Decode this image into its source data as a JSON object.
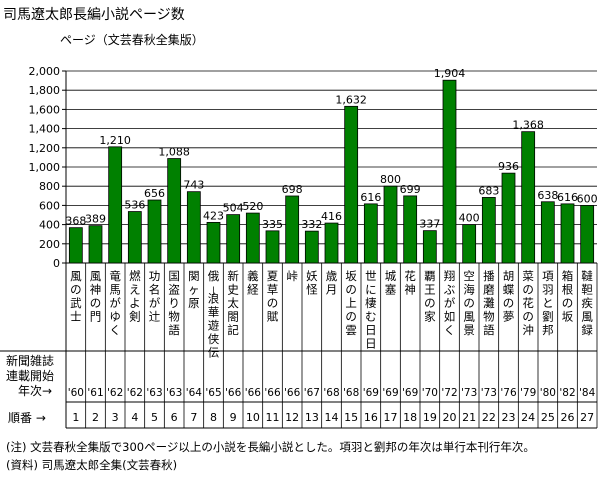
{
  "title": "司馬遼太郎長編小説ページ数",
  "chart_data": {
    "type": "bar",
    "title": "司馬遼太郎長編小説ページ数",
    "ylabel": "ページ（文芸春秋全集版）",
    "xlabel": "",
    "ylim": [
      0,
      2000
    ],
    "yticks": [
      0,
      200,
      400,
      600,
      800,
      1000,
      1200,
      1400,
      1600,
      1800,
      2000
    ],
    "ytick_labels": [
      "0",
      "200",
      "400",
      "600",
      "800",
      "1,000",
      "1,200",
      "1,400",
      "1,600",
      "1,800",
      "2,000"
    ],
    "bar_color": "#008000",
    "categories": [
      "風の武士",
      "風神の門",
      "竜馬がゆく",
      "燃えよ剣",
      "功名が辻",
      "国盗り物語",
      "関ヶ原",
      "俄−浪華遊侠伝",
      "新史太閤記",
      "義経",
      "夏草の賦",
      "峠",
      "妖怪",
      "歳月",
      "坂の上の雲",
      "世に棲む日日",
      "城塞",
      "花神",
      "覇王の家",
      "翔ぶが如く",
      "空海の風景",
      "播磨灘物語",
      "胡蝶の夢",
      "菜の花の沖",
      "項羽と劉邦",
      "箱根の坂",
      "韃靼疾風録"
    ],
    "values": [
      368,
      389,
      1210,
      536,
      656,
      1088,
      743,
      423,
      504,
      520,
      335,
      698,
      332,
      416,
      1632,
      616,
      800,
      699,
      337,
      1904,
      400,
      683,
      936,
      1368,
      638,
      616,
      600
    ],
    "value_labels": [
      "368",
      "389",
      "1,210",
      "536",
      "656",
      "1,088",
      "743",
      "423",
      "504",
      "520",
      "335",
      "698",
      "332",
      "416",
      "1,632",
      "616",
      "800",
      "699",
      "337",
      "1,904",
      "400",
      "683",
      "936",
      "1,368",
      "638",
      "616",
      "600"
    ],
    "years": [
      "'60",
      "'61",
      "'62",
      "'62",
      "'63",
      "'63",
      "'64",
      "'65",
      "'66",
      "'66",
      "'66",
      "'66",
      "'67",
      "'68",
      "'68",
      "'69",
      "'69",
      "'69",
      "'70",
      "'72",
      "'73",
      "'73",
      "'76",
      "'79",
      "'80",
      "'82",
      "'84"
    ],
    "orders": [
      "1",
      "2",
      "3",
      "4",
      "5",
      "6",
      "7",
      "8",
      "9",
      "10",
      "11",
      "12",
      "13",
      "14",
      "15",
      "16",
      "17",
      "18",
      "19",
      "20",
      "21",
      "22",
      "23",
      "24",
      "25",
      "26",
      "27"
    ],
    "row_label_serial_1": "新聞雑誌",
    "row_label_serial_2": "連載開始",
    "row_label_year": "年次→",
    "row_label_order": "順番 →",
    "grid": "y"
  },
  "notes": {
    "note1": "(注) 文芸春秋全集版で300ページ以上の小説を長編小説とした。項羽と劉邦の年次は単行本刊行年次。",
    "note2": "(資料) 司馬遼太郎全集(文芸春秋)"
  }
}
